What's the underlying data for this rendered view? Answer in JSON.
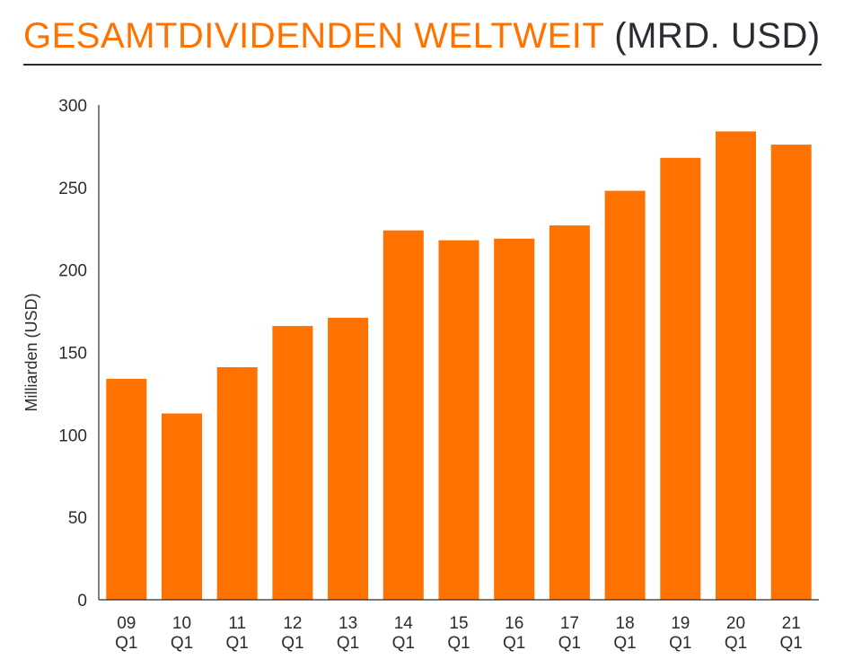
{
  "header": {
    "title_main": "GESAMTDIVIDENDEN WELTWEIT",
    "title_unit": "(MRD. USD)"
  },
  "colors": {
    "bar": "#ff7200",
    "title_accent": "#ff7200",
    "text": "#2b2b33",
    "axis": "#2b2b33"
  },
  "chart_data": {
    "type": "bar",
    "title": "GESAMTDIVIDENDEN WELTWEIT (MRD. USD)",
    "xlabel": "",
    "ylabel": "Milliarden (USD)",
    "ylim": [
      0,
      300
    ],
    "yticks": [
      0,
      50,
      100,
      150,
      200,
      250,
      300
    ],
    "grid": false,
    "categories": [
      {
        "year": "09",
        "quarter": "Q1"
      },
      {
        "year": "10",
        "quarter": "Q1"
      },
      {
        "year": "11",
        "quarter": "Q1"
      },
      {
        "year": "12",
        "quarter": "Q1"
      },
      {
        "year": "13",
        "quarter": "Q1"
      },
      {
        "year": "14",
        "quarter": "Q1"
      },
      {
        "year": "15",
        "quarter": "Q1"
      },
      {
        "year": "16",
        "quarter": "Q1"
      },
      {
        "year": "17",
        "quarter": "Q1"
      },
      {
        "year": "18",
        "quarter": "Q1"
      },
      {
        "year": "19",
        "quarter": "Q1"
      },
      {
        "year": "20",
        "quarter": "Q1"
      },
      {
        "year": "21",
        "quarter": "Q1"
      }
    ],
    "values": [
      134,
      113,
      141,
      166,
      171,
      224,
      218,
      219,
      227,
      248,
      268,
      284,
      276
    ]
  }
}
